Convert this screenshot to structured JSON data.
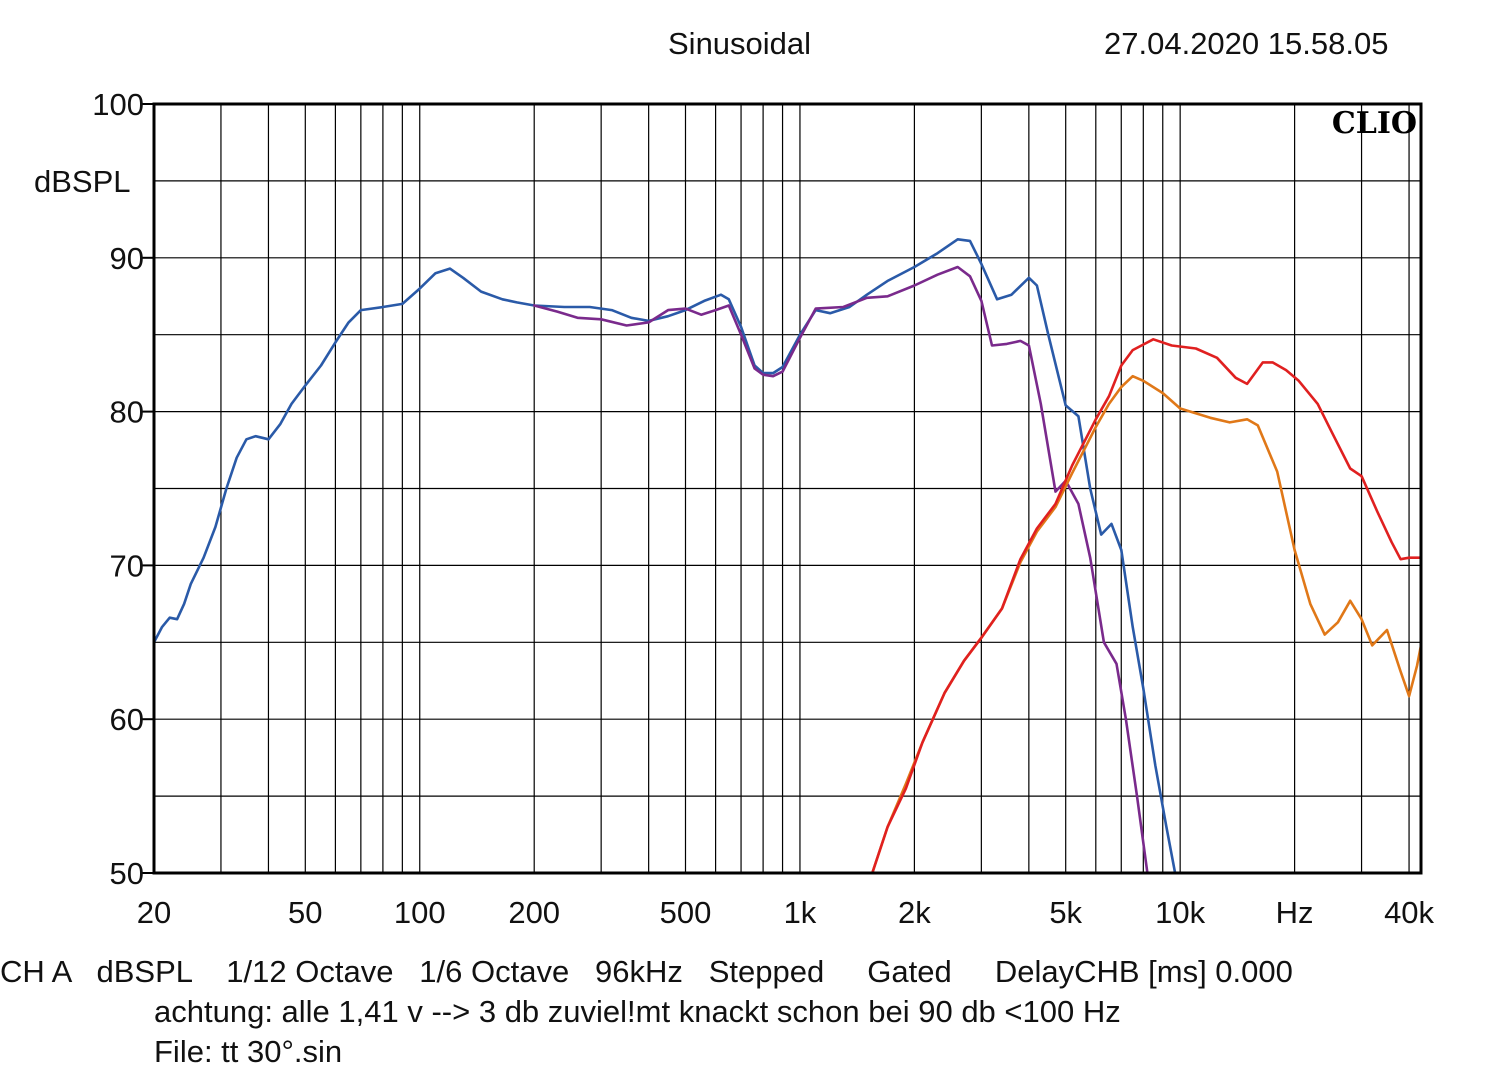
{
  "header": {
    "title": "Sinusoidal",
    "timestamp": "27.04.2020 15.58.05"
  },
  "footer": {
    "line1": "CH A   dBSPL    1/12 Octave   1/6 Octave   96kHz   Stepped     Gated     DelayCHB [ms] 0.000",
    "line2": "achtung: alle 1,41 v --> 3 db zuviel!mt knackt schon bei 90 db <100 Hz",
    "line3": "File: tt 30°.sin"
  },
  "chart_data": {
    "type": "line",
    "logo": "CLIO",
    "ylabel": "dBSPL",
    "xlabel": "Hz",
    "xscale": "log",
    "xlim": [
      20,
      43000
    ],
    "ylim": [
      50,
      100
    ],
    "grid": true,
    "y_ticks": [
      {
        "value": 100,
        "label": "100"
      },
      {
        "value": 90,
        "label": "90"
      },
      {
        "value": 80,
        "label": "80"
      },
      {
        "value": 70,
        "label": "70"
      },
      {
        "value": 60,
        "label": "60"
      },
      {
        "value": 50,
        "label": "50"
      }
    ],
    "x_ticks": [
      {
        "value": 20,
        "label": "20"
      },
      {
        "value": 50,
        "label": "50"
      },
      {
        "value": 100,
        "label": "100"
      },
      {
        "value": 200,
        "label": "200"
      },
      {
        "value": 500,
        "label": "500"
      },
      {
        "value": 1000,
        "label": "1k"
      },
      {
        "value": 2000,
        "label": "2k"
      },
      {
        "value": 5000,
        "label": "5k"
      },
      {
        "value": 10000,
        "label": "10k"
      },
      {
        "value": 20000,
        "label": "Hz"
      },
      {
        "value": 40000,
        "label": "40k"
      }
    ],
    "series": [
      {
        "color": "#2a5aa8",
        "points": [
          [
            20,
            65
          ],
          [
            21,
            66
          ],
          [
            22,
            66.6
          ],
          [
            23,
            66.5
          ],
          [
            24,
            67.5
          ],
          [
            25,
            68.8
          ],
          [
            27,
            70.5
          ],
          [
            29,
            72.5
          ],
          [
            31,
            75
          ],
          [
            33,
            77
          ],
          [
            35,
            78.2
          ],
          [
            37,
            78.4
          ],
          [
            40,
            78.2
          ],
          [
            43,
            79.2
          ],
          [
            46,
            80.5
          ],
          [
            50,
            81.7
          ],
          [
            55,
            83
          ],
          [
            60,
            84.5
          ],
          [
            65,
            85.8
          ],
          [
            70,
            86.6
          ],
          [
            80,
            86.8
          ],
          [
            90,
            87
          ],
          [
            100,
            88
          ],
          [
            110,
            89
          ],
          [
            120,
            89.3
          ],
          [
            130,
            88.7
          ],
          [
            145,
            87.8
          ],
          [
            165,
            87.3
          ],
          [
            180,
            87.1
          ],
          [
            200,
            86.9
          ],
          [
            240,
            86.8
          ],
          [
            280,
            86.8
          ],
          [
            320,
            86.6
          ],
          [
            360,
            86.1
          ],
          [
            400,
            85.9
          ],
          [
            450,
            86.2
          ],
          [
            500,
            86.6
          ],
          [
            560,
            87.2
          ],
          [
            620,
            87.6
          ],
          [
            650,
            87.3
          ],
          [
            700,
            85.5
          ],
          [
            760,
            83
          ],
          [
            800,
            82.5
          ],
          [
            850,
            82.5
          ],
          [
            900,
            82.9
          ],
          [
            1000,
            85
          ],
          [
            1100,
            86.6
          ],
          [
            1200,
            86.4
          ],
          [
            1350,
            86.8
          ],
          [
            1500,
            87.6
          ],
          [
            1700,
            88.5
          ],
          [
            2000,
            89.4
          ],
          [
            2300,
            90.3
          ],
          [
            2600,
            91.2
          ],
          [
            2800,
            91.1
          ],
          [
            3000,
            89.6
          ],
          [
            3300,
            87.3
          ],
          [
            3600,
            87.6
          ],
          [
            4000,
            88.7
          ],
          [
            4200,
            88.2
          ],
          [
            4500,
            85
          ],
          [
            5000,
            80.4
          ],
          [
            5400,
            79.7
          ],
          [
            5800,
            75
          ],
          [
            6200,
            72
          ],
          [
            6600,
            72.7
          ],
          [
            7000,
            71
          ],
          [
            7500,
            66
          ],
          [
            8000,
            62
          ],
          [
            8600,
            57
          ],
          [
            9200,
            53
          ],
          [
            9700,
            50
          ]
        ]
      },
      {
        "color": "#7a2a8c",
        "points": [
          [
            200,
            86.9
          ],
          [
            230,
            86.5
          ],
          [
            260,
            86.1
          ],
          [
            300,
            86
          ],
          [
            350,
            85.6
          ],
          [
            400,
            85.8
          ],
          [
            450,
            86.6
          ],
          [
            500,
            86.7
          ],
          [
            550,
            86.3
          ],
          [
            600,
            86.6
          ],
          [
            650,
            86.9
          ],
          [
            700,
            85
          ],
          [
            760,
            82.8
          ],
          [
            800,
            82.4
          ],
          [
            850,
            82.3
          ],
          [
            900,
            82.6
          ],
          [
            1000,
            84.8
          ],
          [
            1100,
            86.7
          ],
          [
            1300,
            86.8
          ],
          [
            1500,
            87.4
          ],
          [
            1700,
            87.5
          ],
          [
            2000,
            88.2
          ],
          [
            2300,
            88.9
          ],
          [
            2600,
            89.4
          ],
          [
            2800,
            88.8
          ],
          [
            3000,
            87.2
          ],
          [
            3200,
            84.3
          ],
          [
            3500,
            84.4
          ],
          [
            3800,
            84.6
          ],
          [
            4000,
            84.3
          ],
          [
            4300,
            80.5
          ],
          [
            4700,
            74.8
          ],
          [
            5000,
            75.5
          ],
          [
            5400,
            74
          ],
          [
            5800,
            70.5
          ],
          [
            6300,
            65
          ],
          [
            6800,
            63.6
          ],
          [
            7200,
            60
          ],
          [
            7700,
            55
          ],
          [
            8200,
            50
          ]
        ]
      },
      {
        "color": "#e07818",
        "points": [
          [
            1550,
            50
          ],
          [
            1700,
            53
          ],
          [
            1900,
            55.8
          ],
          [
            2100,
            58.5
          ],
          [
            2400,
            61.7
          ],
          [
            2700,
            63.8
          ],
          [
            3000,
            65.3
          ],
          [
            3400,
            67.2
          ],
          [
            3800,
            70.2
          ],
          [
            4200,
            72.2
          ],
          [
            4700,
            73.8
          ],
          [
            5200,
            76
          ],
          [
            6000,
            79
          ],
          [
            6500,
            80.5
          ],
          [
            7000,
            81.6
          ],
          [
            7500,
            82.3
          ],
          [
            8000,
            82
          ],
          [
            9000,
            81.2
          ],
          [
            10000,
            80.2
          ],
          [
            12000,
            79.6
          ],
          [
            13500,
            79.3
          ],
          [
            15000,
            79.5
          ],
          [
            16000,
            79.1
          ],
          [
            18000,
            76.1
          ],
          [
            20000,
            71
          ],
          [
            22000,
            67.5
          ],
          [
            24000,
            65.5
          ],
          [
            26000,
            66.3
          ],
          [
            28000,
            67.7
          ],
          [
            30000,
            66.5
          ],
          [
            32000,
            64.8
          ],
          [
            35000,
            65.8
          ],
          [
            38000,
            63.1
          ],
          [
            40000,
            61.5
          ],
          [
            42000,
            63.5
          ],
          [
            43000,
            64.8
          ]
        ]
      },
      {
        "color": "#e02020",
        "points": [
          [
            1550,
            50
          ],
          [
            1700,
            53
          ],
          [
            1900,
            55.5
          ],
          [
            2100,
            58.5
          ],
          [
            2400,
            61.7
          ],
          [
            2700,
            63.8
          ],
          [
            3000,
            65.3
          ],
          [
            3400,
            67.2
          ],
          [
            3800,
            70.4
          ],
          [
            4200,
            72.4
          ],
          [
            4700,
            74
          ],
          [
            5200,
            76.5
          ],
          [
            6000,
            79.5
          ],
          [
            6500,
            81
          ],
          [
            7000,
            83
          ],
          [
            7500,
            84
          ],
          [
            8500,
            84.7
          ],
          [
            9500,
            84.3
          ],
          [
            11000,
            84.1
          ],
          [
            12500,
            83.5
          ],
          [
            14000,
            82.2
          ],
          [
            15000,
            81.8
          ],
          [
            16500,
            83.2
          ],
          [
            17500,
            83.2
          ],
          [
            19000,
            82.7
          ],
          [
            20500,
            82
          ],
          [
            23000,
            80.5
          ],
          [
            25000,
            78.7
          ],
          [
            28000,
            76.3
          ],
          [
            30000,
            75.8
          ],
          [
            33000,
            73.5
          ],
          [
            36000,
            71.5
          ],
          [
            38000,
            70.4
          ],
          [
            40000,
            70.5
          ],
          [
            43000,
            70.5
          ]
        ]
      }
    ]
  }
}
